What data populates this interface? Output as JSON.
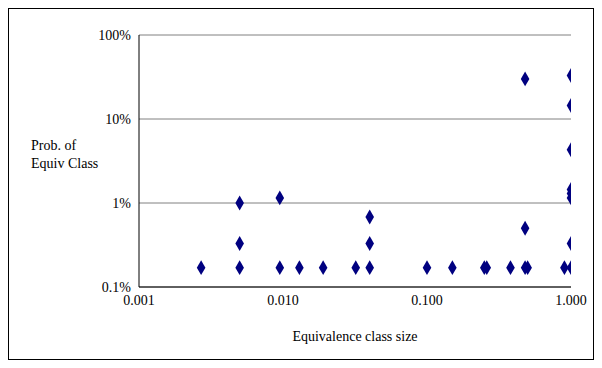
{
  "chart_data": {
    "type": "scatter",
    "x_label": "Equivalence class size",
    "y_label": "Prob. of\nEquiv Class",
    "x": [
      0.0027,
      0.005,
      0.005,
      0.005,
      0.0095,
      0.0095,
      0.013,
      0.019,
      0.032,
      0.04,
      0.04,
      0.04,
      0.1,
      0.15,
      0.25,
      0.26,
      0.38,
      0.48,
      0.48,
      0.48,
      0.5,
      0.9,
      1,
      1,
      1,
      1,
      1,
      1,
      1,
      1
    ],
    "values": [
      0.17,
      1.0,
      0.33,
      0.17,
      1.15,
      0.17,
      0.17,
      0.17,
      0.17,
      0.68,
      0.33,
      0.17,
      0.17,
      0.17,
      0.17,
      0.17,
      0.17,
      30,
      0.5,
      0.17,
      0.17,
      0.17,
      33,
      14.5,
      4.3,
      1.45,
      1.3,
      1.15,
      0.33,
      0.17
    ],
    "color": "#000080",
    "marker": "diamond",
    "log": true,
    "grid": true,
    "xlim": [
      0.001,
      1
    ],
    "xticks": [
      {
        "value": 0.001,
        "label": "0.001"
      },
      {
        "value": 0.01,
        "label": "0.010"
      },
      {
        "value": 0.1,
        "label": "0.100"
      },
      {
        "value": 1,
        "label": "1.000"
      }
    ],
    "ylim": [
      0.1,
      100
    ],
    "yticks": [
      {
        "value": 0.1,
        "label": "0.1%"
      },
      {
        "value": 1,
        "label": "1%"
      },
      {
        "value": 10,
        "label": "10%"
      },
      {
        "value": 100,
        "label": "100%"
      }
    ]
  }
}
